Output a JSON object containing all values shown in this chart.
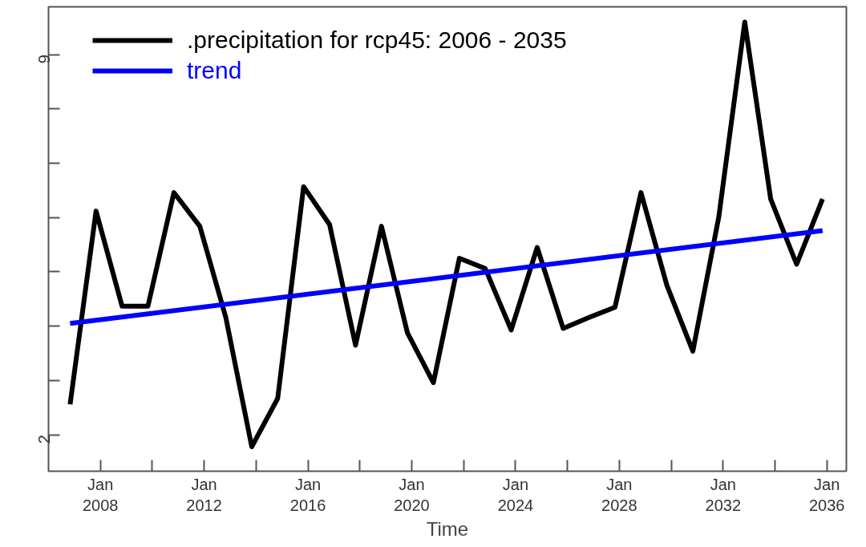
{
  "chart_data": {
    "type": "line",
    "xlabel": "Time",
    "x": [
      "2006-11",
      "2007-11",
      "2008-11",
      "2009-11",
      "2010-11",
      "2011-11",
      "2012-11",
      "2013-11",
      "2014-11",
      "2015-11",
      "2016-11",
      "2017-11",
      "2018-11",
      "2019-11",
      "2020-11",
      "2021-11",
      "2022-11",
      "2023-11",
      "2024-11",
      "2025-11",
      "2026-11",
      "2027-11",
      "2028-11",
      "2029-11",
      "2030-11",
      "2031-11",
      "2032-11",
      "2033-11",
      "2034-11",
      "2035-11"
    ],
    "series": [
      {
        "name": ".precipitation for rcp45: 2006 - 2035",
        "color": "#000000",
        "values": [
          2.56,
          6.12,
          4.37,
          4.37,
          6.46,
          5.84,
          4.16,
          1.78,
          2.67,
          6.57,
          5.87,
          3.65,
          5.84,
          3.88,
          2.96,
          5.25,
          5.06,
          3.93,
          5.45,
          3.96,
          4.16,
          4.35,
          6.46,
          4.75,
          3.54,
          6.01,
          9.6,
          6.34,
          5.14,
          6.34
        ]
      },
      {
        "name": "trend",
        "color": "#0000ff",
        "x": [
          "2006-11",
          "2035-11"
        ],
        "values": [
          4.05,
          5.76
        ]
      }
    ],
    "xlim": [
      "2006-01",
      "2036-10"
    ],
    "xticks": [
      {
        "value": "2008-01",
        "label": "Jan\n2008"
      },
      {
        "value": "2010-01",
        "label": null
      },
      {
        "value": "2012-01",
        "label": "Jan\n2012"
      },
      {
        "value": "2014-01",
        "label": null
      },
      {
        "value": "2016-01",
        "label": "Jan\n2016"
      },
      {
        "value": "2018-01",
        "label": null
      },
      {
        "value": "2020-01",
        "label": "Jan\n2020"
      },
      {
        "value": "2022-01",
        "label": null
      },
      {
        "value": "2024-01",
        "label": "Jan\n2024"
      },
      {
        "value": "2026-01",
        "label": null
      },
      {
        "value": "2028-01",
        "label": "Jan\n2028"
      },
      {
        "value": "2030-01",
        "label": null
      },
      {
        "value": "2032-01",
        "label": "Jan\n2032"
      },
      {
        "value": "2034-01",
        "label": null
      },
      {
        "value": "2036-01",
        "label": "Jan\n2036"
      }
    ],
    "ylim": [
      1.33,
      9.88
    ],
    "yticks": [
      2,
      {
        "value": 3,
        "label": null
      },
      {
        "value": 4,
        "label": null
      },
      {
        "value": 5,
        "label": null
      },
      {
        "value": 6,
        "label": null
      },
      {
        "value": 7,
        "label": null
      },
      {
        "value": 8,
        "label": null
      },
      9
    ],
    "legend": "top left",
    "grid": false,
    "line_style": "solid",
    "marker": "none"
  }
}
